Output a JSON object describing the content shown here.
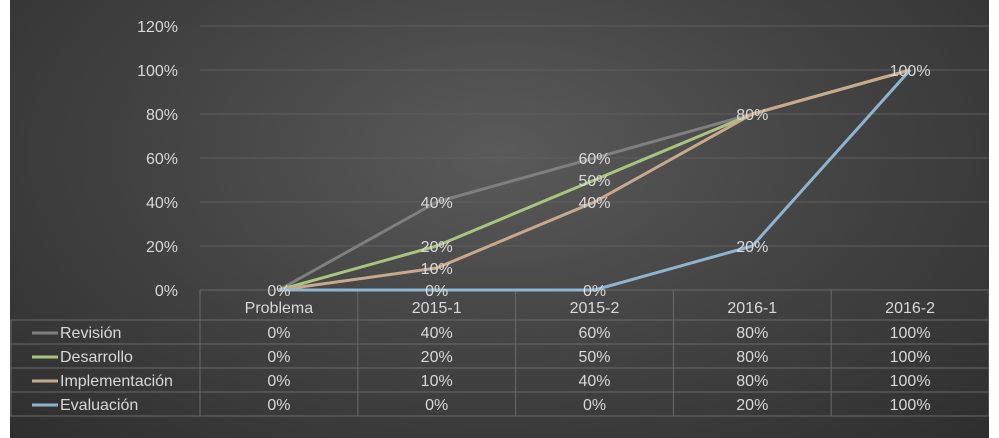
{
  "chart_data": {
    "type": "line",
    "title": "",
    "xlabel": "",
    "ylabel": "",
    "categories": [
      "Problema",
      "2015-1",
      "2015-2",
      "2016-1",
      "2016-2"
    ],
    "y_ticks": [
      "0%",
      "20%",
      "40%",
      "60%",
      "80%",
      "100%",
      "120%"
    ],
    "ylim": [
      0,
      120
    ],
    "grid": true,
    "legend": "data table below chart",
    "series": [
      {
        "name": "Revisión",
        "values": [
          0,
          40,
          60,
          80,
          100
        ],
        "labels": [
          "0%",
          "40%",
          "60%",
          "80%",
          "100%"
        ],
        "color": "#7f7f7f"
      },
      {
        "name": "Desarrollo",
        "values": [
          0,
          20,
          50,
          80,
          100
        ],
        "labels": [
          "0%",
          "20%",
          "50%",
          "80%",
          "100%"
        ],
        "color": "#a9c47f"
      },
      {
        "name": "Implementación",
        "values": [
          0,
          10,
          40,
          80,
          100
        ],
        "labels": [
          "0%",
          "10%",
          "40%",
          "80%",
          "100%"
        ],
        "color": "#c8a98c"
      },
      {
        "name": "Evaluación",
        "values": [
          0,
          0,
          0,
          20,
          100
        ],
        "labels": [
          "0%",
          "0%",
          "0%",
          "20%",
          "100%"
        ],
        "color": "#8fb4d0"
      }
    ]
  }
}
